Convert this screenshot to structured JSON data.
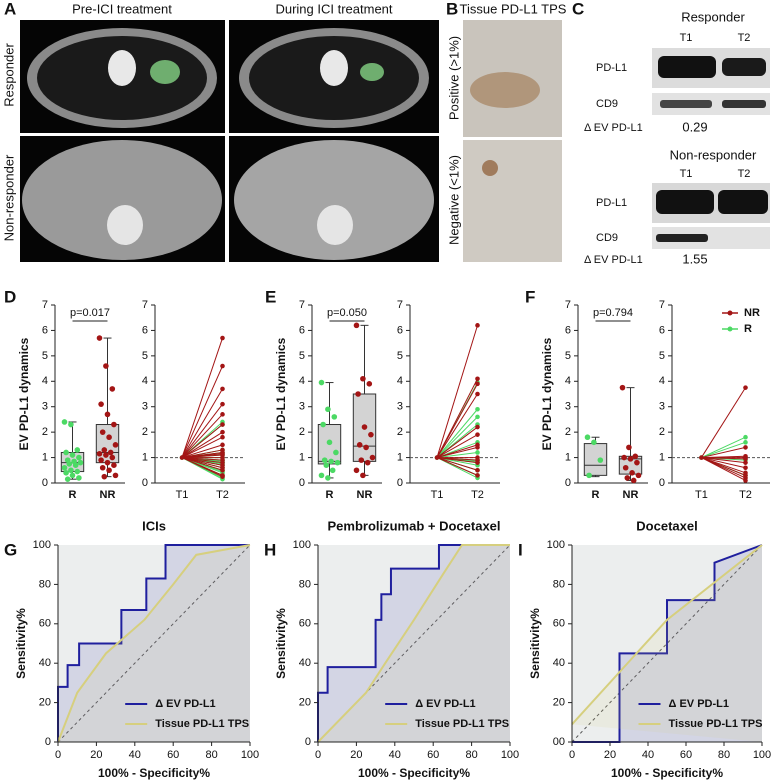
{
  "panels": {
    "A": {
      "letter": "A",
      "columns": [
        "Pre-ICI treatment",
        "During ICI treatment"
      ],
      "rows": [
        "Responder",
        "Non-responder"
      ]
    },
    "B": {
      "letter": "B",
      "title": "Tissue PD-L1 TPS",
      "rows": [
        "Positive (>1%)",
        "Negative (<1%)"
      ]
    },
    "C": {
      "letter": "C",
      "blots": [
        {
          "title": "Responder",
          "lanes": [
            "T1",
            "T2"
          ],
          "bands": [
            "PD-L1",
            "CD9"
          ],
          "delta_label": "Δ EV PD-L1",
          "delta": 0.29
        },
        {
          "title": "Non-responder",
          "lanes": [
            "T1",
            "T2"
          ],
          "bands": [
            "PD-L1",
            "CD9"
          ],
          "delta_label": "Δ EV PD-L1",
          "delta": 1.55
        }
      ]
    }
  },
  "chart_data": [
    {
      "type": "box-paired",
      "letter": "D",
      "ylabel": "EV PD-L1 dynamics",
      "ylim": [
        0,
        7
      ],
      "yticks": [
        0,
        1,
        2,
        3,
        4,
        5,
        6,
        7
      ],
      "p_label": "p=0.017",
      "time_labels": [
        "T1",
        "T2"
      ],
      "reference": 1,
      "groups": [
        {
          "name": "R",
          "color": "#4cd964",
          "min": 0.15,
          "q1": 0.45,
          "median": 0.8,
          "q3": 1.2,
          "max": 2.4,
          "points": [
            2.4,
            2.3,
            1.3,
            1.2,
            1.1,
            1.0,
            0.9,
            0.85,
            0.8,
            0.75,
            0.7,
            0.6,
            0.5,
            0.45,
            0.4,
            0.3,
            0.2,
            0.15
          ]
        },
        {
          "name": "NR",
          "color": "#a31515",
          "min": 0.25,
          "q1": 0.8,
          "median": 1.2,
          "q3": 2.3,
          "max": 5.7,
          "points": [
            5.7,
            4.6,
            3.7,
            3.1,
            2.7,
            2.3,
            2.0,
            1.8,
            1.5,
            1.3,
            1.2,
            1.15,
            1.1,
            1.0,
            0.9,
            0.8,
            0.7,
            0.6,
            0.5,
            0.3,
            0.25
          ]
        }
      ]
    },
    {
      "type": "box-paired",
      "letter": "E",
      "ylabel": "EV PD-L1 dynamics",
      "ylim": [
        0,
        7
      ],
      "yticks": [
        0,
        1,
        2,
        3,
        4,
        5,
        6,
        7
      ],
      "p_label": "p=0.050",
      "time_labels": [
        "T1",
        "T2"
      ],
      "reference": 1,
      "groups": [
        {
          "name": "R",
          "color": "#4cd964",
          "min": 0.2,
          "q1": 0.75,
          "median": 0.85,
          "q3": 2.3,
          "max": 3.95,
          "points": [
            3.95,
            2.9,
            2.6,
            2.3,
            1.6,
            1.2,
            0.9,
            0.85,
            0.8,
            0.7,
            0.5,
            0.3,
            0.2
          ]
        },
        {
          "name": "NR",
          "color": "#a31515",
          "min": 0.3,
          "q1": 0.85,
          "median": 1.45,
          "q3": 3.5,
          "max": 6.2,
          "points": [
            6.2,
            4.1,
            3.9,
            3.5,
            2.2,
            1.9,
            1.5,
            1.4,
            1.0,
            0.9,
            0.8,
            0.5,
            0.3
          ]
        }
      ]
    },
    {
      "type": "box-paired",
      "letter": "F",
      "ylabel": "EV PD-L1 dynamics",
      "ylim": [
        0,
        7
      ],
      "yticks": [
        0,
        1,
        2,
        3,
        4,
        5,
        6,
        7
      ],
      "p_label": "p=0.794",
      "time_labels": [
        "T1",
        "T2"
      ],
      "reference": 1,
      "legend": "upper right",
      "groups": [
        {
          "name": "R",
          "color": "#4cd964",
          "min": 0.25,
          "q1": 0.3,
          "median": 0.7,
          "q3": 1.55,
          "max": 1.8,
          "points": [
            1.8,
            1.6,
            0.9,
            0.3
          ]
        },
        {
          "name": "NR",
          "color": "#a31515",
          "min": 0.1,
          "q1": 0.35,
          "median": 0.95,
          "q3": 1.05,
          "max": 3.75,
          "points": [
            3.75,
            1.4,
            1.05,
            1.0,
            0.95,
            0.8,
            0.6,
            0.4,
            0.3,
            0.2,
            0.1
          ]
        }
      ]
    },
    {
      "type": "roc",
      "letter": "G",
      "title": "ICIs",
      "xlabel": "100% - Specificity%",
      "ylabel": "Sensitivity%",
      "xlim": [
        0,
        100
      ],
      "ylim": [
        0,
        100
      ],
      "xticks": [
        0,
        20,
        40,
        60,
        80,
        100
      ],
      "yticks": [
        0,
        20,
        40,
        60,
        80,
        100
      ],
      "legend": "lower right",
      "series": [
        {
          "name": "Δ EV PD-L1",
          "color": "#1f1f9e",
          "x": [
            0,
            0,
            5,
            5,
            11,
            11,
            33,
            33,
            46,
            46,
            56,
            56,
            100
          ],
          "y": [
            0,
            28,
            28,
            39,
            39,
            50,
            50,
            67,
            67,
            83,
            83,
            100,
            100
          ]
        },
        {
          "name": "Tissue PD-L1 TPS",
          "color": "#d6cf7e",
          "x": [
            0,
            10,
            25,
            45,
            60,
            72,
            100
          ],
          "y": [
            0,
            25,
            45,
            62,
            80,
            95,
            100
          ]
        }
      ]
    },
    {
      "type": "roc",
      "letter": "H",
      "title": "Pembrolizumab + Docetaxel",
      "xlabel": "100% - Specificity%",
      "ylabel": "Sensitivity%",
      "xlim": [
        0,
        100
      ],
      "ylim": [
        0,
        100
      ],
      "xticks": [
        0,
        20,
        40,
        60,
        80,
        100
      ],
      "yticks": [
        0,
        20,
        40,
        60,
        80,
        100
      ],
      "legend": "lower right",
      "series": [
        {
          "name": "Δ EV PD-L1",
          "color": "#1f1f9e",
          "x": [
            0,
            0,
            5,
            5,
            30,
            30,
            33,
            33,
            38,
            38,
            63,
            63,
            100
          ],
          "y": [
            0,
            25,
            25,
            38,
            38,
            62,
            62,
            75,
            75,
            88,
            88,
            100,
            100
          ]
        },
        {
          "name": "Tissue PD-L1 TPS",
          "color": "#d6cf7e",
          "x": [
            0,
            25,
            35,
            50,
            65,
            75,
            100
          ],
          "y": [
            0,
            25,
            40,
            62,
            85,
            100,
            100
          ]
        }
      ]
    },
    {
      "type": "roc",
      "letter": "I",
      "title": "Docetaxel",
      "xlabel": "100% - Specificity%",
      "ylabel": "Sensitivity%",
      "xlim": [
        0,
        100
      ],
      "ylim": [
        0,
        100
      ],
      "xticks": [
        0,
        20,
        40,
        60,
        80,
        100
      ],
      "yticks": [
        {
          "value": 0,
          "label": "00"
        },
        20,
        40,
        60,
        80,
        100
      ],
      "legend": "lower right",
      "series": [
        {
          "name": "Δ EV PD-L1",
          "color": "#1f1f9e",
          "x": [
            0,
            25,
            25,
            50,
            50,
            75,
            75,
            100
          ],
          "y": [
            0,
            0,
            45,
            45,
            72,
            72,
            91,
            100
          ]
        },
        {
          "name": "Tissue PD-L1 TPS",
          "color": "#d6cf7e",
          "x": [
            0,
            50,
            100
          ],
          "y": [
            9,
            62,
            100
          ]
        }
      ]
    }
  ]
}
